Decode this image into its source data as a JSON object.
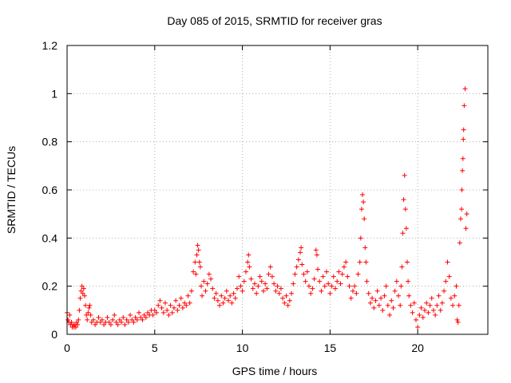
{
  "chart_data": {
    "type": "scatter",
    "title": "Day 085 of 2015, SRMTID for receiver gras",
    "xlabel": "GPS time / hours",
    "ylabel": "SRMTID / TECUs",
    "xlim": [
      0,
      24
    ],
    "ylim": [
      0,
      1.2
    ],
    "x_ticks": [
      0,
      5,
      10,
      15,
      20
    ],
    "x_tick_labels": [
      "0",
      "5",
      "10",
      "15",
      "20"
    ],
    "y_ticks": [
      0,
      0.2,
      0.4,
      0.6,
      0.8,
      1.0,
      1.2
    ],
    "y_tick_labels": [
      "0",
      "0.2",
      "0.4",
      "0.6",
      "0.8",
      "1",
      "1.2"
    ],
    "grid": true,
    "marker": "+",
    "color": "#ff0000",
    "series": [
      {
        "name": "SRMTID",
        "points": [
          [
            0.0,
            0.09
          ],
          [
            0.05,
            0.06
          ],
          [
            0.1,
            0.05
          ],
          [
            0.15,
            0.08
          ],
          [
            0.2,
            0.04
          ],
          [
            0.25,
            0.05
          ],
          [
            0.3,
            0.03
          ],
          [
            0.35,
            0.04
          ],
          [
            0.4,
            0.03
          ],
          [
            0.45,
            0.04
          ],
          [
            0.5,
            0.03
          ],
          [
            0.55,
            0.05
          ],
          [
            0.6,
            0.04
          ],
          [
            0.65,
            0.06
          ],
          [
            0.7,
            0.1
          ],
          [
            0.75,
            0.15
          ],
          [
            0.8,
            0.18
          ],
          [
            0.85,
            0.2
          ],
          [
            0.9,
            0.17
          ],
          [
            0.95,
            0.19
          ],
          [
            1.0,
            0.16
          ],
          [
            1.05,
            0.12
          ],
          [
            1.1,
            0.08
          ],
          [
            1.15,
            0.06
          ],
          [
            1.2,
            0.09
          ],
          [
            1.25,
            0.11
          ],
          [
            1.3,
            0.12
          ],
          [
            1.35,
            0.08
          ],
          [
            1.4,
            0.05
          ],
          [
            1.5,
            0.06
          ],
          [
            1.6,
            0.04
          ],
          [
            1.7,
            0.05
          ],
          [
            1.8,
            0.07
          ],
          [
            1.9,
            0.05
          ],
          [
            2.0,
            0.06
          ],
          [
            2.1,
            0.04
          ],
          [
            2.2,
            0.05
          ],
          [
            2.3,
            0.07
          ],
          [
            2.4,
            0.05
          ],
          [
            2.5,
            0.04
          ],
          [
            2.6,
            0.06
          ],
          [
            2.7,
            0.08
          ],
          [
            2.8,
            0.05
          ],
          [
            2.9,
            0.04
          ],
          [
            3.0,
            0.06
          ],
          [
            3.1,
            0.05
          ],
          [
            3.2,
            0.07
          ],
          [
            3.3,
            0.04
          ],
          [
            3.4,
            0.06
          ],
          [
            3.5,
            0.05
          ],
          [
            3.6,
            0.08
          ],
          [
            3.7,
            0.06
          ],
          [
            3.8,
            0.05
          ],
          [
            3.9,
            0.07
          ],
          [
            4.0,
            0.06
          ],
          [
            4.1,
            0.09
          ],
          [
            4.2,
            0.07
          ],
          [
            4.3,
            0.06
          ],
          [
            4.4,
            0.08
          ],
          [
            4.5,
            0.07
          ],
          [
            4.6,
            0.09
          ],
          [
            4.7,
            0.08
          ],
          [
            4.8,
            0.1
          ],
          [
            4.9,
            0.08
          ],
          [
            5.0,
            0.1
          ],
          [
            5.1,
            0.09
          ],
          [
            5.2,
            0.12
          ],
          [
            5.3,
            0.14
          ],
          [
            5.4,
            0.11
          ],
          [
            5.5,
            0.09
          ],
          [
            5.6,
            0.13
          ],
          [
            5.7,
            0.1
          ],
          [
            5.8,
            0.08
          ],
          [
            5.9,
            0.12
          ],
          [
            6.0,
            0.09
          ],
          [
            6.1,
            0.11
          ],
          [
            6.2,
            0.14
          ],
          [
            6.3,
            0.1
          ],
          [
            6.4,
            0.12
          ],
          [
            6.5,
            0.15
          ],
          [
            6.6,
            0.11
          ],
          [
            6.7,
            0.13
          ],
          [
            6.8,
            0.12
          ],
          [
            6.9,
            0.16
          ],
          [
            7.0,
            0.13
          ],
          [
            7.1,
            0.18
          ],
          [
            7.2,
            0.26
          ],
          [
            7.3,
            0.3
          ],
          [
            7.35,
            0.25
          ],
          [
            7.4,
            0.33
          ],
          [
            7.45,
            0.37
          ],
          [
            7.5,
            0.35
          ],
          [
            7.55,
            0.3
          ],
          [
            7.6,
            0.28
          ],
          [
            7.65,
            0.2
          ],
          [
            7.7,
            0.16
          ],
          [
            7.8,
            0.22
          ],
          [
            7.9,
            0.18
          ],
          [
            8.0,
            0.21
          ],
          [
            8.1,
            0.25
          ],
          [
            8.2,
            0.23
          ],
          [
            8.3,
            0.19
          ],
          [
            8.4,
            0.15
          ],
          [
            8.5,
            0.17
          ],
          [
            8.6,
            0.14
          ],
          [
            8.7,
            0.12
          ],
          [
            8.8,
            0.16
          ],
          [
            8.9,
            0.13
          ],
          [
            9.0,
            0.15
          ],
          [
            9.1,
            0.18
          ],
          [
            9.2,
            0.14
          ],
          [
            9.3,
            0.16
          ],
          [
            9.4,
            0.13
          ],
          [
            9.5,
            0.17
          ],
          [
            9.6,
            0.15
          ],
          [
            9.7,
            0.19
          ],
          [
            9.8,
            0.24
          ],
          [
            9.9,
            0.2
          ],
          [
            10.0,
            0.18
          ],
          [
            10.1,
            0.22
          ],
          [
            10.2,
            0.26
          ],
          [
            10.3,
            0.3
          ],
          [
            10.35,
            0.33
          ],
          [
            10.4,
            0.28
          ],
          [
            10.5,
            0.23
          ],
          [
            10.6,
            0.19
          ],
          [
            10.7,
            0.21
          ],
          [
            10.8,
            0.17
          ],
          [
            10.9,
            0.2
          ],
          [
            11.0,
            0.24
          ],
          [
            11.1,
            0.22
          ],
          [
            11.2,
            0.18
          ],
          [
            11.3,
            0.21
          ],
          [
            11.4,
            0.19
          ],
          [
            11.5,
            0.25
          ],
          [
            11.6,
            0.28
          ],
          [
            11.7,
            0.24
          ],
          [
            11.8,
            0.21
          ],
          [
            11.9,
            0.18
          ],
          [
            12.0,
            0.2
          ],
          [
            12.1,
            0.17
          ],
          [
            12.2,
            0.19
          ],
          [
            12.3,
            0.15
          ],
          [
            12.4,
            0.13
          ],
          [
            12.5,
            0.16
          ],
          [
            12.6,
            0.12
          ],
          [
            12.7,
            0.14
          ],
          [
            12.8,
            0.17
          ],
          [
            12.9,
            0.21
          ],
          [
            13.0,
            0.25
          ],
          [
            13.1,
            0.28
          ],
          [
            13.2,
            0.31
          ],
          [
            13.3,
            0.34
          ],
          [
            13.35,
            0.36
          ],
          [
            13.4,
            0.29
          ],
          [
            13.5,
            0.25
          ],
          [
            13.6,
            0.22
          ],
          [
            13.7,
            0.26
          ],
          [
            13.8,
            0.2
          ],
          [
            13.9,
            0.17
          ],
          [
            14.0,
            0.19
          ],
          [
            14.1,
            0.23
          ],
          [
            14.2,
            0.35
          ],
          [
            14.25,
            0.33
          ],
          [
            14.3,
            0.27
          ],
          [
            14.4,
            0.22
          ],
          [
            14.5,
            0.18
          ],
          [
            14.6,
            0.24
          ],
          [
            14.7,
            0.2
          ],
          [
            14.8,
            0.26
          ],
          [
            14.9,
            0.21
          ],
          [
            15.0,
            0.17
          ],
          [
            15.1,
            0.2
          ],
          [
            15.2,
            0.24
          ],
          [
            15.3,
            0.19
          ],
          [
            15.4,
            0.22
          ],
          [
            15.5,
            0.26
          ],
          [
            15.6,
            0.21
          ],
          [
            15.7,
            0.25
          ],
          [
            15.8,
            0.28
          ],
          [
            15.9,
            0.3
          ],
          [
            16.0,
            0.24
          ],
          [
            16.1,
            0.2
          ],
          [
            16.2,
            0.15
          ],
          [
            16.3,
            0.18
          ],
          [
            16.4,
            0.2
          ],
          [
            16.5,
            0.17
          ],
          [
            16.6,
            0.25
          ],
          [
            16.7,
            0.3
          ],
          [
            16.75,
            0.4
          ],
          [
            16.8,
            0.52
          ],
          [
            16.85,
            0.58
          ],
          [
            16.9,
            0.55
          ],
          [
            16.95,
            0.48
          ],
          [
            17.0,
            0.36
          ],
          [
            17.05,
            0.3
          ],
          [
            17.1,
            0.22
          ],
          [
            17.2,
            0.17
          ],
          [
            17.3,
            0.13
          ],
          [
            17.4,
            0.15
          ],
          [
            17.5,
            0.11
          ],
          [
            17.6,
            0.14
          ],
          [
            17.7,
            0.18
          ],
          [
            17.8,
            0.12
          ],
          [
            17.9,
            0.15
          ],
          [
            18.0,
            0.1
          ],
          [
            18.1,
            0.16
          ],
          [
            18.2,
            0.2
          ],
          [
            18.3,
            0.12
          ],
          [
            18.4,
            0.08
          ],
          [
            18.5,
            0.14
          ],
          [
            18.6,
            0.11
          ],
          [
            18.7,
            0.18
          ],
          [
            18.8,
            0.22
          ],
          [
            18.9,
            0.16
          ],
          [
            19.0,
            0.12
          ],
          [
            19.05,
            0.2
          ],
          [
            19.1,
            0.28
          ],
          [
            19.15,
            0.42
          ],
          [
            19.2,
            0.56
          ],
          [
            19.25,
            0.66
          ],
          [
            19.3,
            0.52
          ],
          [
            19.35,
            0.44
          ],
          [
            19.4,
            0.3
          ],
          [
            19.45,
            0.22
          ],
          [
            19.5,
            0.16
          ],
          [
            19.6,
            0.12
          ],
          [
            19.7,
            0.09
          ],
          [
            19.8,
            0.13
          ],
          [
            19.9,
            0.06
          ],
          [
            20.0,
            0.03
          ],
          [
            20.1,
            0.08
          ],
          [
            20.2,
            0.11
          ],
          [
            20.3,
            0.07
          ],
          [
            20.4,
            0.1
          ],
          [
            20.5,
            0.13
          ],
          [
            20.6,
            0.09
          ],
          [
            20.7,
            0.12
          ],
          [
            20.8,
            0.15
          ],
          [
            20.9,
            0.1
          ],
          [
            21.0,
            0.08
          ],
          [
            21.1,
            0.12
          ],
          [
            21.2,
            0.16
          ],
          [
            21.3,
            0.1
          ],
          [
            21.4,
            0.13
          ],
          [
            21.5,
            0.18
          ],
          [
            21.6,
            0.22
          ],
          [
            21.7,
            0.3
          ],
          [
            21.8,
            0.24
          ],
          [
            21.9,
            0.15
          ],
          [
            22.0,
            0.12
          ],
          [
            22.1,
            0.16
          ],
          [
            22.2,
            0.2
          ],
          [
            22.25,
            0.06
          ],
          [
            22.3,
            0.05
          ],
          [
            22.35,
            0.12
          ],
          [
            22.4,
            0.38
          ],
          [
            22.45,
            0.48
          ],
          [
            22.5,
            0.52
          ],
          [
            22.52,
            0.6
          ],
          [
            22.55,
            0.68
          ],
          [
            22.58,
            0.73
          ],
          [
            22.6,
            0.81
          ],
          [
            22.62,
            0.85
          ],
          [
            22.65,
            0.95
          ],
          [
            22.7,
            1.02
          ],
          [
            22.75,
            0.44
          ],
          [
            22.8,
            0.5
          ]
        ]
      }
    ]
  }
}
